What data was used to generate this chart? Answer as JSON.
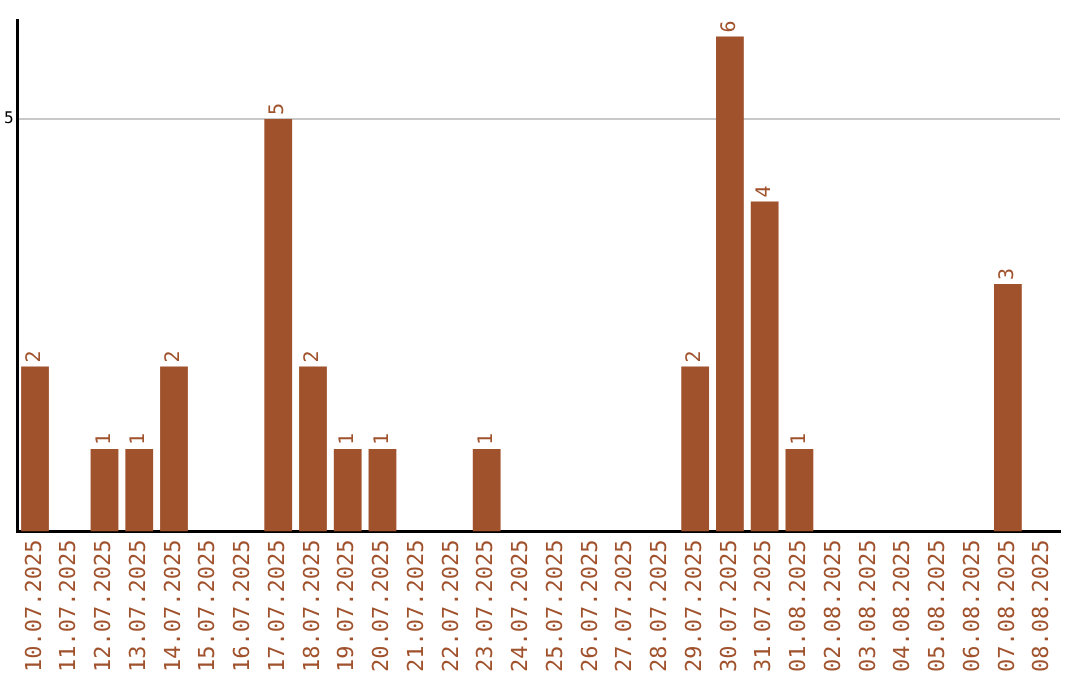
{
  "chart_data": {
    "type": "bar",
    "categories": [
      "10.07.2025",
      "11.07.2025",
      "12.07.2025",
      "13.07.2025",
      "14.07.2025",
      "15.07.2025",
      "16.07.2025",
      "17.07.2025",
      "18.07.2025",
      "19.07.2025",
      "20.07.2025",
      "21.07.2025",
      "22.07.2025",
      "23.07.2025",
      "24.07.2025",
      "25.07.2025",
      "26.07.2025",
      "27.07.2025",
      "28.07.2025",
      "29.07.2025",
      "30.07.2025",
      "31.07.2025",
      "01.08.2025",
      "02.08.2025",
      "03.08.2025",
      "04.08.2025",
      "05.08.2025",
      "06.08.2025",
      "07.08.2025",
      "08.08.2025"
    ],
    "values": [
      2,
      0,
      1,
      1,
      2,
      0,
      0,
      5,
      2,
      1,
      1,
      0,
      0,
      1,
      0,
      0,
      0,
      0,
      0,
      2,
      6,
      4,
      1,
      0,
      0,
      0,
      0,
      0,
      3,
      0
    ],
    "value_labels": [
      "2",
      null,
      "1",
      "1",
      "2",
      null,
      null,
      "5",
      "2",
      "1",
      "1",
      null,
      null,
      "1",
      null,
      null,
      null,
      null,
      null,
      "2",
      "6",
      "4",
      "1",
      null,
      null,
      null,
      null,
      null,
      "3",
      null
    ],
    "color": "#a0522d",
    "ylim": [
      0,
      6.2
    ],
    "yticks": [
      5
    ],
    "grid": "y",
    "legend": false
  }
}
